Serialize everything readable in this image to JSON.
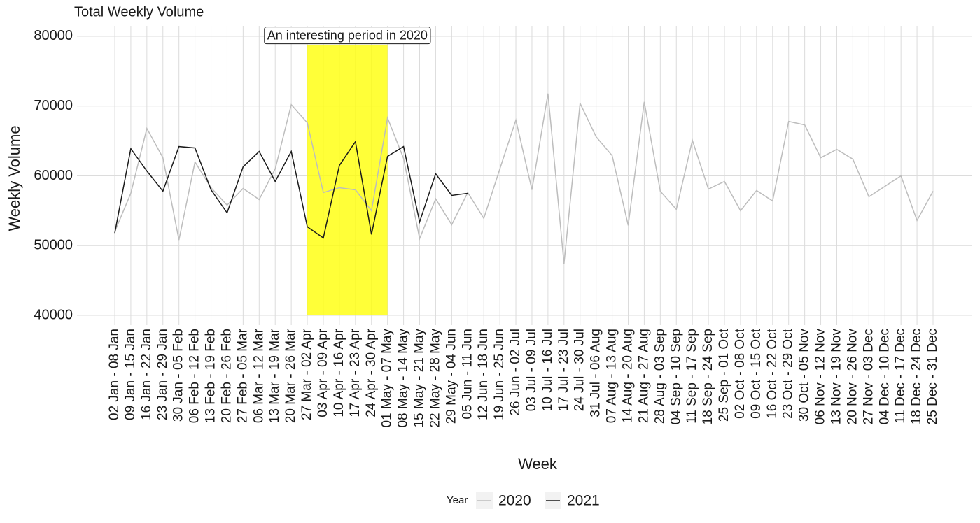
{
  "chart_data": {
    "type": "line",
    "title": "Total Weekly Volume",
    "x_label": "Week",
    "y_label": "Weekly Volume",
    "legend_title": "Year",
    "legend_position": "bottom",
    "grid": true,
    "categories": [
      "02 Jan - 08 Jan",
      "09 Jan - 15 Jan",
      "16 Jan - 22 Jan",
      "23 Jan - 29 Jan",
      "30 Jan - 05 Feb",
      "06 Feb - 12 Feb",
      "13 Feb - 19 Feb",
      "20 Feb - 26 Feb",
      "27 Feb - 05 Mar",
      "06 Mar - 12 Mar",
      "13 Mar - 19 Mar",
      "20 Mar - 26 Mar",
      "27 Mar - 02 Apr",
      "03 Apr - 09 Apr",
      "10 Apr - 16 Apr",
      "17 Apr - 23 Apr",
      "24 Apr - 30 Apr",
      "01 May - 07 May",
      "08 May - 14 May",
      "15 May - 21 May",
      "22 May - 28 May",
      "29 May - 04 Jun",
      "05 Jun - 11 Jun",
      "12 Jun - 18 Jun",
      "19 Jun - 25 Jun",
      "26 Jun - 02 Jul",
      "03 Jul - 09 Jul",
      "10 Jul - 16 Jul",
      "17 Jul - 23 Jul",
      "24 Jul - 30 Jul",
      "31 Jul - 06 Aug",
      "07 Aug - 13 Aug",
      "14 Aug - 20 Aug",
      "21 Aug - 27 Aug",
      "28 Aug - 03 Sep",
      "04 Sep - 10 Sep",
      "11 Sep - 17 Sep",
      "18 Sep - 24 Sep",
      "25 Sep - 01 Oct",
      "02 Oct - 08 Oct",
      "09 Oct - 15 Oct",
      "16 Oct - 22 Oct",
      "23 Oct - 29 Oct",
      "30 Oct - 05 Nov",
      "06 Nov - 12 Nov",
      "13 Nov - 19 Nov",
      "20 Nov - 26 Nov",
      "27 Nov - 03 Dec",
      "04 Dec - 10 Dec",
      "11 Dec - 17 Dec",
      "18 Dec - 24 Dec",
      "25 Dec - 31 Dec"
    ],
    "series": [
      {
        "name": "2020",
        "color": "#bdbdbd",
        "values": [
          52000,
          57500,
          66800,
          62600,
          50800,
          62000,
          58300,
          55800,
          58200,
          56600,
          61000,
          70200,
          67600,
          57600,
          58300,
          58000,
          55000,
          68300,
          62500,
          51000,
          56700,
          53000,
          57600,
          53900,
          61000,
          68000,
          58000,
          71800,
          47400,
          70400,
          65600,
          62900,
          52900,
          70600,
          57800,
          55200,
          65100,
          58100,
          59200,
          55000,
          57900,
          56400,
          67800,
          67300,
          62600,
          63800,
          62400,
          57000,
          58500,
          60000,
          53600,
          57800
        ]
      },
      {
        "name": "2021",
        "color": "#1a1a1a",
        "values": [
          51800,
          63900,
          60700,
          57800,
          64200,
          64000,
          58000,
          54700,
          61300,
          63500,
          59200,
          63500,
          52700,
          51100,
          61500,
          64900,
          51600,
          62800,
          64200,
          53400,
          60300,
          57200,
          57500,
          null,
          null,
          null,
          null,
          null,
          null,
          null,
          null,
          null,
          null,
          null,
          null,
          null,
          null,
          null,
          null,
          null,
          null,
          null,
          null,
          null,
          null,
          null,
          null,
          null,
          null,
          null,
          null,
          null
        ]
      }
    ],
    "highlight": {
      "start": "27 Mar - 02 Apr",
      "end": "01 May - 07 May",
      "ymin": 40000,
      "ymax": 78800,
      "color": "#ffff00",
      "label": "An interesting period in 2020"
    },
    "ylim": [
      38600,
      81500
    ],
    "yticks": [
      40000,
      50000,
      60000,
      70000,
      80000
    ]
  }
}
